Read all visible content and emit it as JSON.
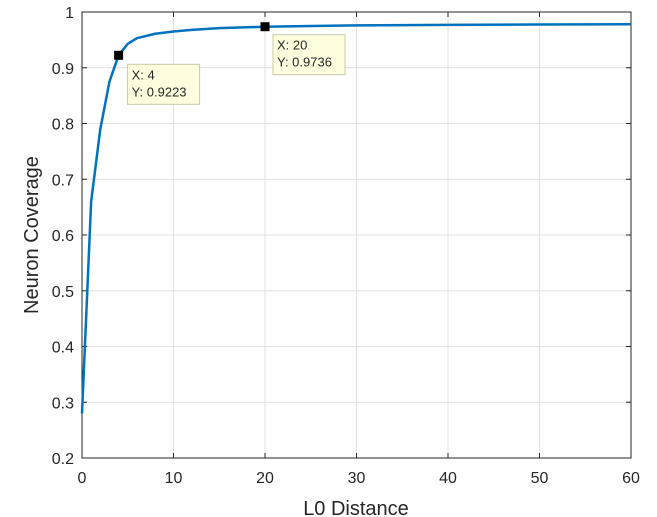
{
  "chart_data": {
    "type": "line",
    "xlabel": "L0 Distance",
    "ylabel": "Neuron Coverage",
    "xlim": [
      0,
      60
    ],
    "ylim": [
      0.2,
      1
    ],
    "xticks": [
      0,
      10,
      20,
      30,
      40,
      50,
      60
    ],
    "xtick_labels": [
      "0",
      "10",
      "20",
      "30",
      "40",
      "50",
      "60"
    ],
    "yticks": [
      0.2,
      0.3,
      0.4,
      0.5,
      0.6,
      0.7,
      0.8,
      0.9,
      1
    ],
    "ytick_labels": [
      "0.2",
      "0.3",
      "0.4",
      "0.5",
      "0.6",
      "0.7",
      "0.8",
      "0.9",
      "1"
    ],
    "grid": true,
    "line_color": "#0072BD",
    "series": [
      {
        "x": [
          0,
          1,
          2,
          3,
          4,
          5,
          6,
          8,
          10,
          12,
          15,
          20,
          25,
          30,
          40,
          50,
          60
        ],
        "y": [
          0.28,
          0.66,
          0.79,
          0.875,
          0.9223,
          0.943,
          0.953,
          0.961,
          0.965,
          0.968,
          0.971,
          0.9736,
          0.975,
          0.976,
          0.977,
          0.9775,
          0.978
        ]
      }
    ],
    "datatips": [
      {
        "x": 4,
        "y": 0.9223,
        "x_text": "X: 4",
        "y_text": "Y: 0.9223"
      },
      {
        "x": 20,
        "y": 0.9736,
        "x_text": "X: 20",
        "y_text": "Y: 0.9736"
      }
    ]
  }
}
